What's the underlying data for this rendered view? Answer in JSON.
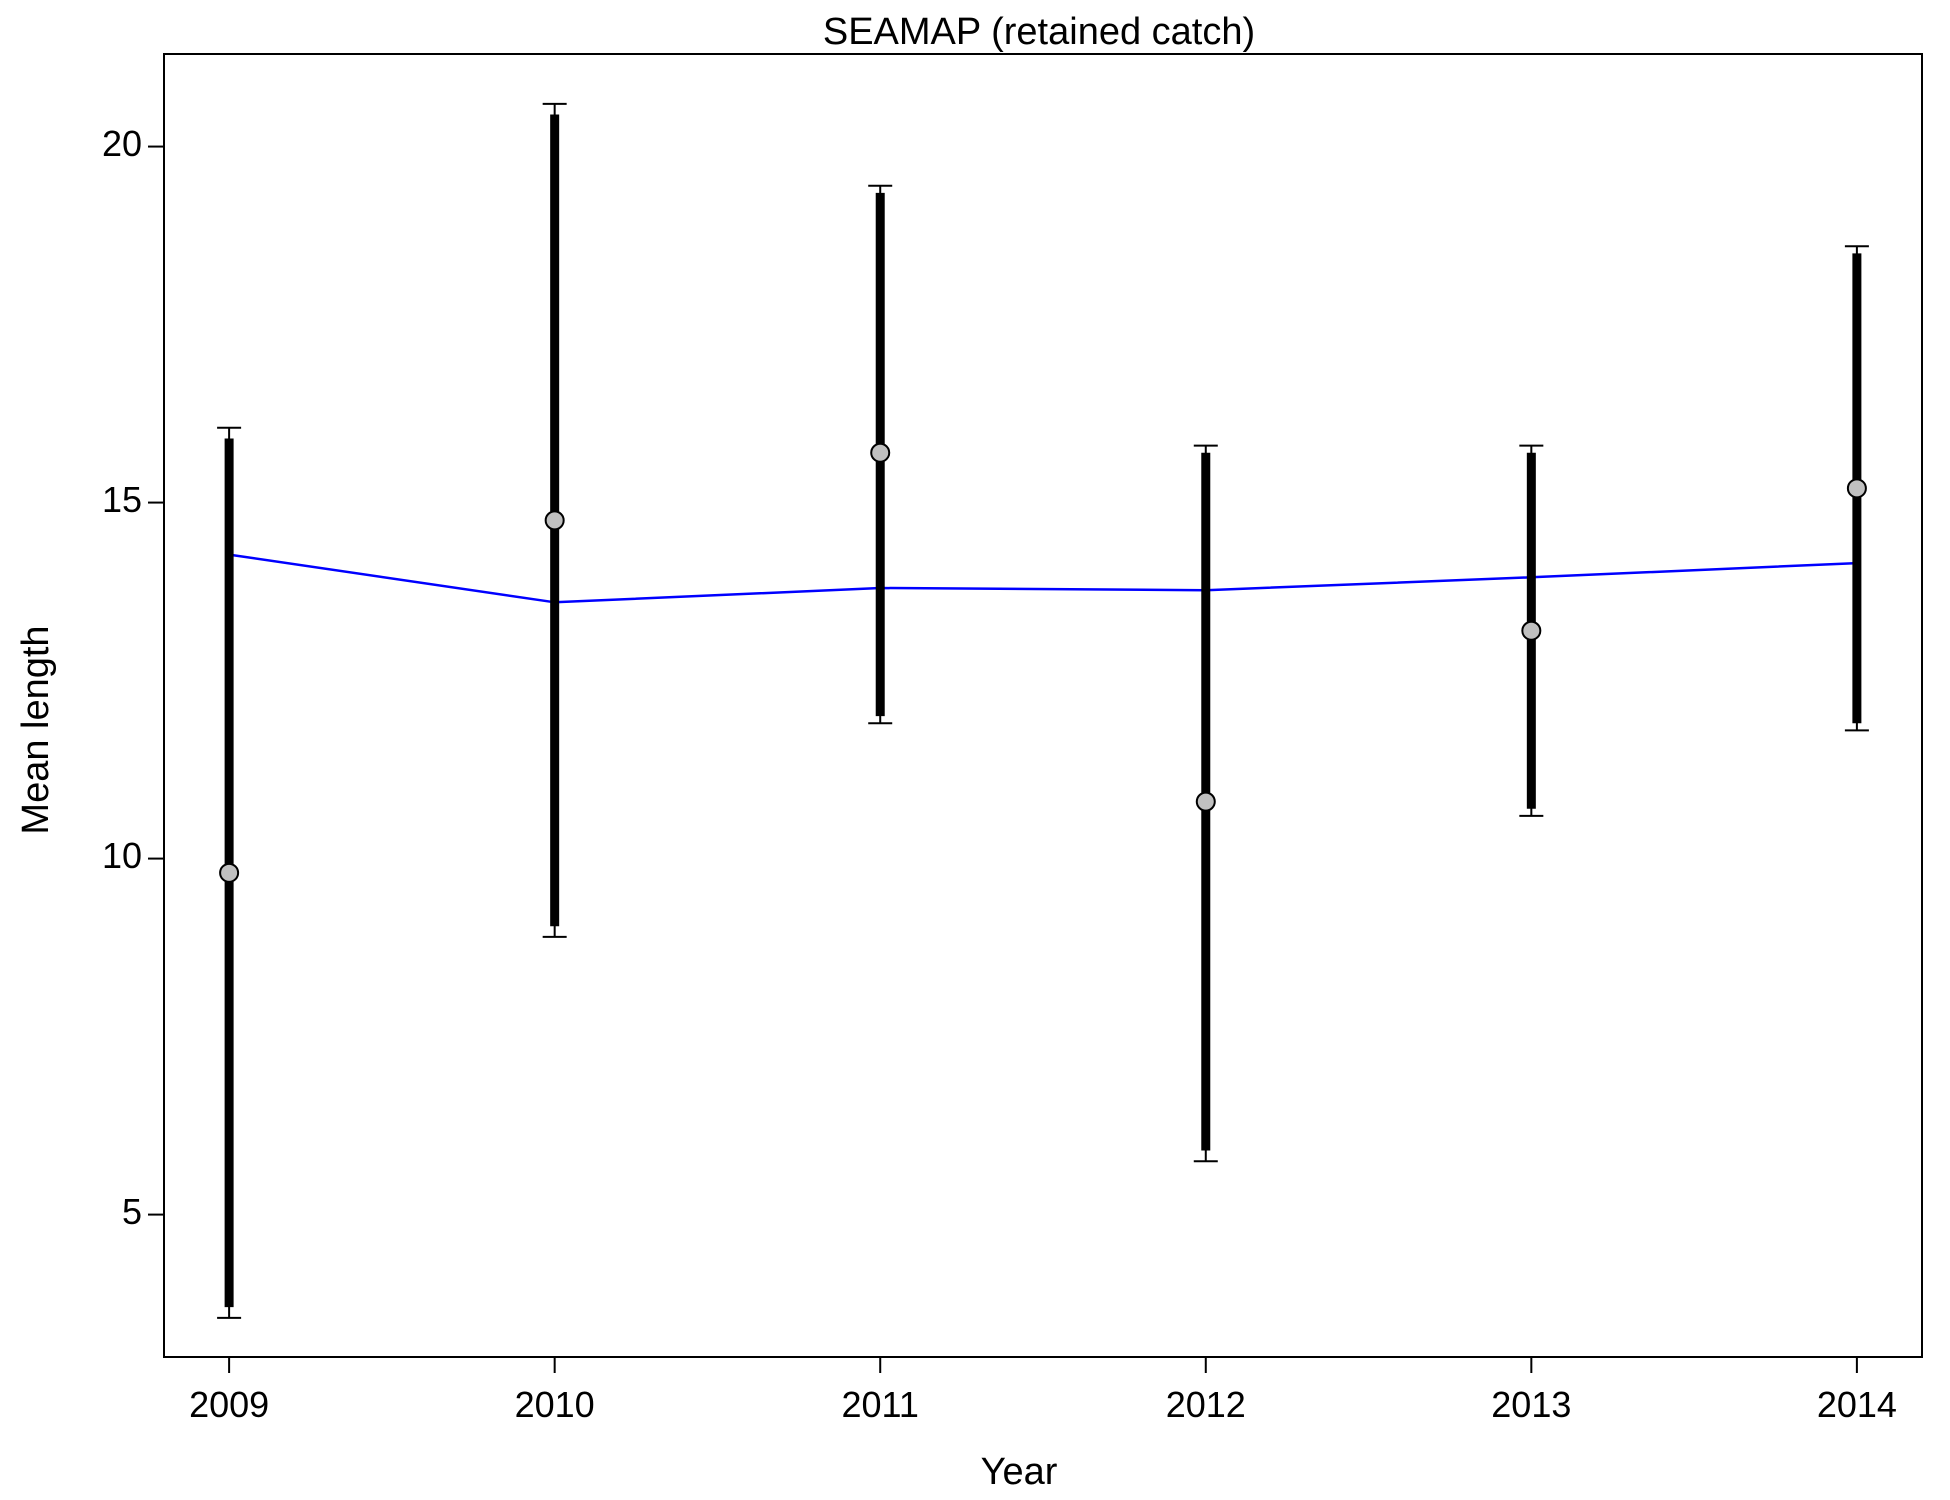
{
  "chart_data": {
    "type": "scatter",
    "title": "SEAMAP (retained catch)",
    "xlabel": "Year",
    "ylabel": "Mean length",
    "x": [
      2009,
      2010,
      2011,
      2012,
      2013,
      2014
    ],
    "x_tick_labels": [
      "2009",
      "2010",
      "2011",
      "2012",
      "2013",
      "2014"
    ],
    "y_ticks": [
      5,
      10,
      15,
      20
    ],
    "y_tick_labels": [
      "5",
      "10",
      "15",
      "20"
    ],
    "xlim": [
      2008.8,
      2014.2
    ],
    "ylim": [
      3.0,
      21.3
    ],
    "grid": false,
    "series": [
      {
        "observed_mean": [
          9.8,
          14.75,
          15.7,
          10.8,
          13.2,
          15.2
        ],
        "outer_interval_low": [
          3.55,
          8.9,
          11.9,
          5.75,
          10.6,
          11.8
        ],
        "outer_interval_high": [
          16.05,
          20.6,
          19.45,
          15.8,
          15.8,
          18.6
        ],
        "inner_interval_low": [
          3.7,
          9.05,
          12.0,
          5.9,
          10.7,
          11.9
        ],
        "inner_interval_high": [
          15.9,
          20.45,
          19.35,
          15.7,
          15.7,
          18.5
        ],
        "fitted_line": [
          14.27,
          13.6,
          13.8,
          13.77,
          13.95,
          14.15
        ]
      }
    ],
    "colors": {
      "fitted_line": "#0000ff",
      "interval": "#000000",
      "point_fill": "#c0c0c0",
      "point_stroke": "#000000"
    }
  }
}
